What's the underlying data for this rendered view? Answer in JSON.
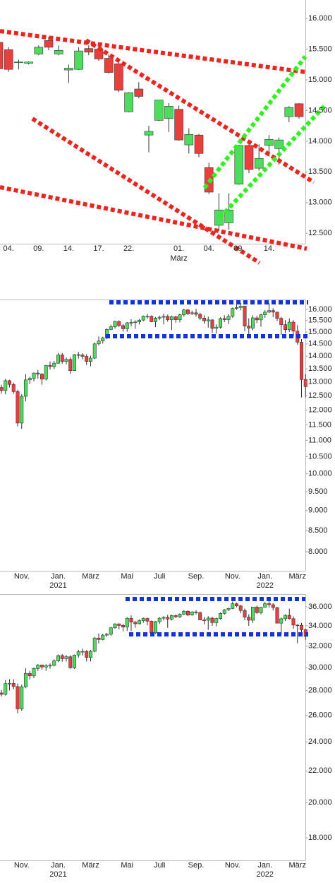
{
  "chart_data": [
    {
      "type": "candlestick",
      "log": false,
      "up_color": "#4ddc5e",
      "down_color": "#e8403c",
      "categories": [
        null,
        "04.",
        null,
        null,
        "09.",
        null,
        null,
        "14.",
        null,
        null,
        "17.",
        null,
        null,
        "22.",
        null,
        null,
        null,
        null,
        "01.",
        null,
        null,
        "04.",
        null,
        null,
        "09.",
        null,
        null,
        "14.",
        null,
        null,
        null
      ],
      "sublabels": [
        null,
        null,
        null,
        null,
        null,
        null,
        null,
        null,
        null,
        null,
        null,
        null,
        null,
        null,
        null,
        null,
        null,
        null,
        "März",
        null,
        null,
        null,
        null,
        null,
        null,
        null,
        null,
        null,
        null,
        null,
        null
      ],
      "open": [
        15610,
        15490,
        15280,
        15270,
        15420,
        15640,
        15420,
        15160,
        15170,
        15510,
        15500,
        15350,
        15260,
        14480,
        14850,
        14100,
        14340,
        14370,
        14520,
        13940,
        14100,
        13570,
        12630,
        12670,
        13300,
        13930,
        13560,
        13930,
        13880,
        14400,
        14610
      ],
      "high": [
        15680,
        15530,
        15330,
        15300,
        15560,
        15700,
        15560,
        15250,
        15530,
        15560,
        15580,
        15410,
        15280,
        14800,
        14960,
        14250,
        14670,
        14620,
        14580,
        14210,
        14120,
        13650,
        13150,
        13150,
        13940,
        13950,
        13950,
        14100,
        14060,
        14570,
        14620
      ],
      "low": [
        15160,
        15130,
        15170,
        15250,
        15400,
        15480,
        15400,
        14950,
        15160,
        15400,
        15310,
        15100,
        14800,
        14470,
        14700,
        13820,
        14330,
        14150,
        14010,
        13800,
        13740,
        13140,
        12540,
        12560,
        13290,
        13480,
        13520,
        13750,
        13620,
        14310,
        14370
      ],
      "close": [
        15180,
        15170,
        15290,
        15290,
        15530,
        15530,
        15480,
        15190,
        15470,
        15450,
        15340,
        15120,
        14830,
        14790,
        14730,
        14160,
        14670,
        14570,
        14020,
        14110,
        13800,
        13170,
        12880,
        12880,
        13930,
        13540,
        13720,
        14030,
        14020,
        14550,
        14400
      ],
      "ylim": [
        12330,
        16300
      ],
      "yticks": [
        {
          "value": 16000,
          "label": "16.000"
        },
        {
          "value": 15500,
          "label": "15.500"
        },
        {
          "value": 15000,
          "label": "15.000"
        },
        {
          "value": 14500,
          "label": "14.500"
        },
        {
          "value": 14000,
          "label": "14.000"
        },
        {
          "value": 13500,
          "label": "13.500"
        },
        {
          "value": 13000,
          "label": "13.000"
        },
        {
          "value": 12500,
          "label": "12.500"
        }
      ]
    },
    {
      "type": "candlestick",
      "log": true,
      "up_color": "#4ddc5e",
      "down_color": "#e8403c",
      "categories": [
        null,
        null,
        null,
        null,
        null,
        "Nov.",
        null,
        null,
        null,
        null,
        null,
        null,
        null,
        null,
        "Jan.",
        null,
        null,
        null,
        null,
        null,
        null,
        null,
        "März",
        null,
        null,
        null,
        null,
        null,
        null,
        null,
        null,
        "Mai",
        null,
        null,
        null,
        null,
        null,
        null,
        null,
        "Juli",
        null,
        null,
        null,
        null,
        null,
        null,
        null,
        null,
        "Sep.",
        null,
        null,
        null,
        null,
        null,
        null,
        null,
        null,
        "Nov.",
        null,
        null,
        null,
        null,
        null,
        null,
        null,
        "Jan.",
        null,
        null,
        null,
        null,
        null,
        null,
        null,
        "März",
        null,
        null
      ],
      "sublabels": [
        null,
        null,
        null,
        null,
        null,
        null,
        null,
        null,
        null,
        null,
        null,
        null,
        null,
        null,
        "2021",
        null,
        null,
        null,
        null,
        null,
        null,
        null,
        null,
        null,
        null,
        null,
        null,
        null,
        null,
        null,
        null,
        null,
        null,
        null,
        null,
        null,
        null,
        null,
        null,
        null,
        null,
        null,
        null,
        null,
        null,
        null,
        null,
        null,
        null,
        null,
        null,
        null,
        null,
        null,
        null,
        null,
        null,
        null,
        null,
        null,
        null,
        null,
        null,
        null,
        null,
        "2022",
        null,
        null,
        null,
        null,
        null,
        null,
        null,
        null,
        null,
        null
      ],
      "open": [
        12800,
        12690,
        13050,
        12910,
        12650,
        11560,
        12480,
        13080,
        13140,
        13340,
        13300,
        13110,
        13630,
        13590,
        13720,
        14050,
        13790,
        13870,
        13430,
        14060,
        14050,
        13990,
        13790,
        13920,
        14500,
        14620,
        14750,
        15110,
        15230,
        15460,
        15280,
        15140,
        15400,
        15420,
        15440,
        15520,
        15690,
        15690,
        15450,
        15610,
        15650,
        15690,
        15540,
        15670,
        15540,
        15760,
        15980,
        15810,
        15850,
        15780,
        15610,
        15490,
        15530,
        15160,
        15210,
        15590,
        15540,
        15690,
        16050,
        16090,
        16160,
        15260,
        15170,
        15620,
        15530,
        15760,
        15880,
        15950,
        15880,
        15600,
        15320,
        15100,
        15430,
        15040,
        14570,
        13100
      ],
      "high": [
        12900,
        13120,
        13080,
        12980,
        12720,
        12560,
        13300,
        13200,
        13360,
        13460,
        13330,
        13660,
        13790,
        13810,
        14130,
        14130,
        13950,
        13950,
        14080,
        14170,
        14120,
        14080,
        14020,
        14560,
        14810,
        14800,
        15160,
        15320,
        15500,
        15510,
        15350,
        15440,
        15560,
        15510,
        15570,
        15730,
        15810,
        15740,
        15660,
        15720,
        15810,
        15770,
        15720,
        15710,
        15810,
        16030,
        16030,
        15950,
        16030,
        15850,
        15740,
        15680,
        15560,
        15330,
        15640,
        15740,
        15780,
        16090,
        16290,
        16300,
        16160,
        15600,
        15740,
        15710,
        15810,
        15970,
        16290,
        16060,
        15900,
        15670,
        15520,
        15600,
        15520,
        15300,
        14700,
        13300
      ],
      "low": [
        12580,
        12550,
        12800,
        12570,
        11450,
        11370,
        12300,
        12930,
        13030,
        13130,
        12900,
        13060,
        13470,
        13490,
        13700,
        13700,
        13680,
        13310,
        13430,
        13900,
        13870,
        13650,
        13600,
        13880,
        14440,
        14510,
        14700,
        15080,
        15150,
        15220,
        15020,
        15010,
        15240,
        15140,
        15330,
        15480,
        15580,
        15420,
        15210,
        15520,
        15340,
        15450,
        15080,
        15410,
        15420,
        15680,
        15750,
        15750,
        15670,
        15520,
        15360,
        15190,
        14960,
        14930,
        15150,
        15430,
        15350,
        15620,
        15980,
        15960,
        15040,
        14820,
        15070,
        15390,
        15230,
        15620,
        15830,
        15650,
        15480,
        14880,
        14950,
        15000,
        14810,
        14470,
        12440,
        12440
      ],
      "close": [
        12690,
        13050,
        12910,
        12650,
        11560,
        12480,
        13080,
        13140,
        13340,
        13300,
        13110,
        13630,
        13590,
        13720,
        14050,
        13790,
        13870,
        13430,
        14060,
        14050,
        13990,
        13790,
        13920,
        14500,
        14620,
        14750,
        15110,
        15230,
        15460,
        15280,
        15140,
        15400,
        15420,
        15440,
        15520,
        15690,
        15690,
        15450,
        15610,
        15650,
        15690,
        15540,
        15670,
        15540,
        15760,
        15980,
        15810,
        15850,
        15780,
        15610,
        15490,
        15530,
        15160,
        15210,
        15590,
        15540,
        15690,
        16050,
        16090,
        16160,
        15260,
        15170,
        15620,
        15530,
        15760,
        15880,
        15950,
        15880,
        15600,
        15320,
        15100,
        15430,
        15040,
        14570,
        13090,
        12830
      ],
      "ylim": [
        7575,
        16430
      ],
      "yticks": [
        {
          "value": 16000,
          "label": "16.000"
        },
        {
          "value": 15500,
          "label": "15.500"
        },
        {
          "value": 15000,
          "label": "15.000"
        },
        {
          "value": 14500,
          "label": "14.500"
        },
        {
          "value": 14000,
          "label": "14.000"
        },
        {
          "value": 13500,
          "label": "13.500"
        },
        {
          "value": 13000,
          "label": "13.000"
        },
        {
          "value": 12500,
          "label": "12.500"
        },
        {
          "value": 12000,
          "label": "12.000"
        },
        {
          "value": 11500,
          "label": "11.500"
        },
        {
          "value": 11000,
          "label": "11.000"
        },
        {
          "value": 10500,
          "label": "10.500"
        },
        {
          "value": 10000,
          "label": "10.000"
        },
        {
          "value": 9500,
          "label": "9.500"
        },
        {
          "value": 9000,
          "label": "9.000"
        },
        {
          "value": 8500,
          "label": "8.500"
        },
        {
          "value": 8000,
          "label": "8.000"
        }
      ]
    },
    {
      "type": "candlestick",
      "log": true,
      "up_color": "#4ddc5e",
      "down_color": "#e8403c",
      "categories": [
        null,
        null,
        null,
        null,
        null,
        "Nov.",
        null,
        null,
        null,
        null,
        null,
        null,
        null,
        null,
        "Jan.",
        null,
        null,
        null,
        null,
        null,
        null,
        null,
        "März",
        null,
        null,
        null,
        null,
        null,
        null,
        null,
        null,
        "Mai",
        null,
        null,
        null,
        null,
        null,
        null,
        null,
        "Juli",
        null,
        null,
        null,
        null,
        null,
        null,
        null,
        null,
        "Sep.",
        null,
        null,
        null,
        null,
        null,
        null,
        null,
        null,
        "Nov.",
        null,
        null,
        null,
        null,
        null,
        null,
        null,
        "Jan.",
        null,
        null,
        null,
        null,
        null,
        null,
        null,
        "März",
        null,
        null
      ],
      "sublabels": [
        null,
        null,
        null,
        null,
        null,
        null,
        null,
        null,
        null,
        null,
        null,
        null,
        null,
        null,
        "2021",
        null,
        null,
        null,
        null,
        null,
        null,
        null,
        null,
        null,
        null,
        null,
        null,
        null,
        null,
        null,
        null,
        null,
        null,
        null,
        null,
        null,
        null,
        null,
        null,
        null,
        null,
        null,
        null,
        null,
        null,
        null,
        null,
        null,
        null,
        null,
        null,
        null,
        null,
        null,
        null,
        null,
        null,
        null,
        null,
        null,
        null,
        null,
        null,
        null,
        null,
        "2022",
        null,
        null,
        null,
        null,
        null,
        null,
        null,
        null,
        null,
        null
      ],
      "open": [
        27800,
        27680,
        28590,
        28610,
        28340,
        26500,
        28320,
        29480,
        29260,
        29910,
        30220,
        30050,
        30180,
        30200,
        30610,
        31100,
        30810,
        30990,
        29980,
        31150,
        31460,
        31490,
        30930,
        31500,
        32780,
        32630,
        33070,
        33150,
        33800,
        34200,
        34040,
        33870,
        34780,
        34380,
        34210,
        34530,
        34760,
        34480,
        33290,
        34430,
        34790,
        34870,
        34690,
        35060,
        34940,
        35210,
        35520,
        35120,
        35450,
        35370,
        34610,
        34580,
        34800,
        34330,
        34750,
        35290,
        35680,
        35820,
        36330,
        36100,
        35600,
        34900,
        34580,
        35970,
        35370,
        35950,
        36340,
        36230,
        35910,
        34270,
        34730,
        35090,
        34740,
        34080,
        34060,
        33610
      ],
      "high": [
        28050,
        28900,
        28960,
        28960,
        28600,
        28500,
        29930,
        29700,
        30000,
        30320,
        30270,
        30310,
        30380,
        30750,
        31200,
        31240,
        31140,
        31120,
        31200,
        31650,
        31750,
        31620,
        31640,
        32900,
        33230,
        33200,
        33280,
        33900,
        34260,
        34260,
        34200,
        34900,
        35090,
        34500,
        34650,
        34850,
        34850,
        34550,
        34500,
        34900,
        35000,
        35150,
        35150,
        35180,
        35300,
        35650,
        35630,
        35520,
        35630,
        35500,
        34900,
        35000,
        34920,
        34850,
        35390,
        35760,
        35900,
        36570,
        36450,
        36200,
        35810,
        35200,
        36000,
        36150,
        36000,
        36530,
        36950,
        36400,
        36000,
        34850,
        35200,
        35800,
        34980,
        34160,
        34300,
        33700
      ],
      "low": [
        27500,
        27580,
        28000,
        28100,
        26150,
        26350,
        28200,
        28950,
        29060,
        29700,
        29800,
        29700,
        29900,
        30100,
        30500,
        30530,
        30550,
        29900,
        29880,
        30900,
        31100,
        30550,
        30550,
        31400,
        32250,
        32550,
        32900,
        33000,
        33700,
        33650,
        33450,
        33470,
        33470,
        33800,
        34150,
        34300,
        34050,
        33270,
        33200,
        34200,
        34550,
        33800,
        34560,
        34800,
        34800,
        35120,
        35000,
        35050,
        35200,
        34580,
        34150,
        33600,
        33990,
        33950,
        34650,
        35150,
        35550,
        35750,
        35950,
        35300,
        34600,
        34000,
        34300,
        35250,
        35200,
        35900,
        35900,
        35600,
        34260,
        33150,
        34500,
        34650,
        33700,
        32270,
        33200,
        32600
      ],
      "close": [
        27680,
        28590,
        28610,
        28340,
        26500,
        28320,
        29480,
        29260,
        29910,
        30220,
        30050,
        30180,
        30200,
        30610,
        31100,
        30810,
        30990,
        29980,
        31150,
        31460,
        31490,
        30930,
        31500,
        32780,
        32630,
        33070,
        33150,
        33800,
        34200,
        34040,
        33870,
        34780,
        34380,
        34210,
        34530,
        34760,
        34480,
        33290,
        34430,
        34790,
        34870,
        34690,
        35060,
        34940,
        35210,
        35520,
        35120,
        35450,
        35370,
        34610,
        34580,
        34800,
        34330,
        34750,
        35290,
        35680,
        35820,
        36330,
        36100,
        35600,
        34900,
        34580,
        35970,
        35370,
        35950,
        36340,
        36230,
        35910,
        34270,
        34730,
        35090,
        34740,
        34080,
        34060,
        33610,
        32940
      ],
      "ylim": [
        16820,
        37320
      ],
      "yticks": [
        {
          "value": 36000,
          "label": "36.000"
        },
        {
          "value": 34000,
          "label": "34.000"
        },
        {
          "value": 32000,
          "label": "32.000"
        },
        {
          "value": 30000,
          "label": "30.000"
        },
        {
          "value": 28000,
          "label": "28.000"
        },
        {
          "value": 26000,
          "label": "26.000"
        },
        {
          "value": 24000,
          "label": "24.000"
        },
        {
          "value": 22000,
          "label": "22.000"
        },
        {
          "value": 20000,
          "label": "20.000"
        },
        {
          "value": 18000,
          "label": "18.000"
        }
      ]
    }
  ]
}
